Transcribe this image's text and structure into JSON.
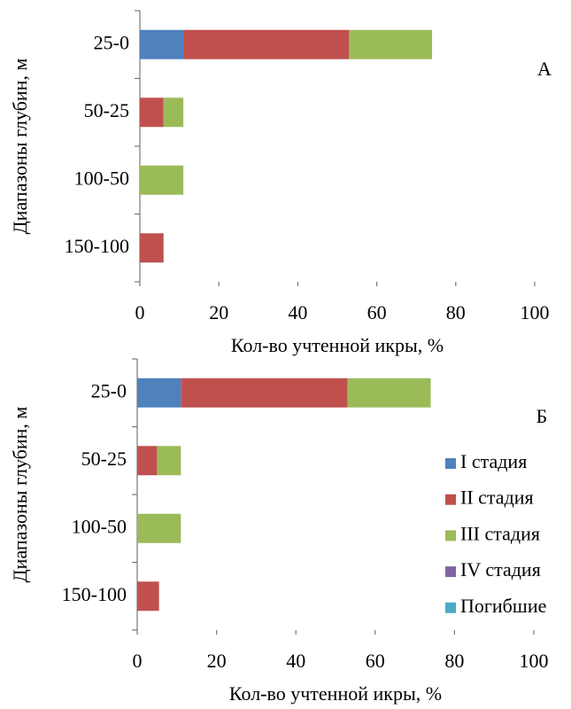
{
  "chart_data": [
    {
      "type": "stacked_barh",
      "annotation": "А",
      "ylabel": "Диапазоны глубин, м",
      "xlabel": "Кол-во учтенной икры, %",
      "categories": [
        "25-0",
        "50-25",
        "100-50",
        "150-100"
      ],
      "series": [
        {
          "color": "#4f81bd",
          "values": [
            11,
            0,
            0,
            0
          ]
        },
        {
          "color": "#c0504d",
          "values": [
            42,
            6,
            0,
            6
          ]
        },
        {
          "color": "#9bbb59",
          "values": [
            21,
            5,
            11,
            0
          ]
        }
      ],
      "xlim": [
        0,
        100
      ],
      "xticks": [
        0,
        20,
        40,
        60,
        80,
        100
      ],
      "legend": false
    },
    {
      "type": "stacked_barh",
      "annotation": "Б",
      "ylabel": "Диапазоны глубин, м",
      "xlabel": "Кол-во учтенной икры, %",
      "categories": [
        "25-0",
        "50-25",
        "100-50",
        "150-100"
      ],
      "series": [
        {
          "name": "I стадия",
          "color": "#4f81bd",
          "values": [
            11,
            0,
            0,
            0
          ]
        },
        {
          "name": "II стадия",
          "color": "#c0504d",
          "values": [
            42,
            5,
            0,
            5.5
          ]
        },
        {
          "name": "III стадия",
          "color": "#9bbb59",
          "values": [
            21,
            6,
            11,
            0
          ]
        },
        {
          "name": "IV стадия",
          "color": "#8064a2",
          "values": [
            0,
            0,
            0,
            0
          ]
        },
        {
          "name": "Погибшие",
          "color": "#4bacc6",
          "values": [
            0,
            0,
            0,
            0
          ]
        }
      ],
      "xlim": [
        0,
        100
      ],
      "xticks": [
        0,
        20,
        40,
        60,
        80,
        100
      ],
      "legend": true
    }
  ]
}
